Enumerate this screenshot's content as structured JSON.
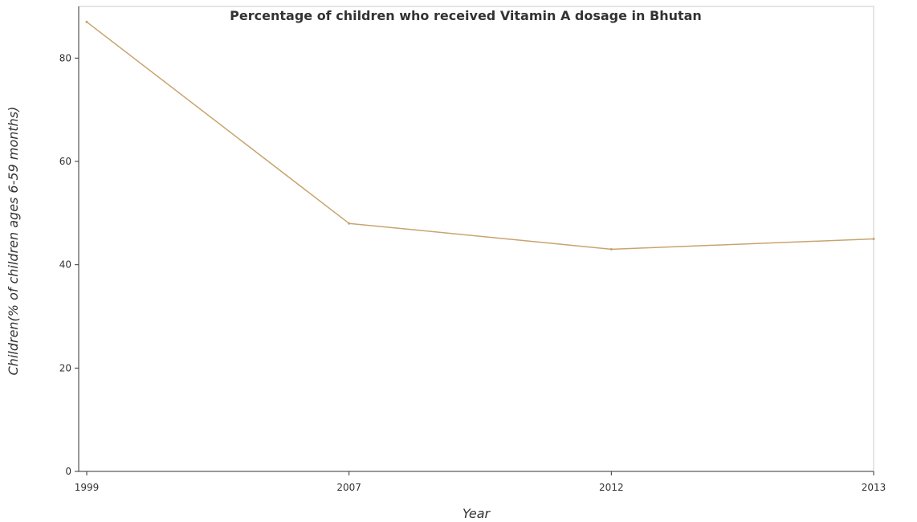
{
  "chart_data": {
    "type": "line",
    "title": "Percentage of children who received Vitamin A dosage in Bhutan",
    "xlabel": "Year",
    "ylabel": "Children(% of children ages 6-59 months)",
    "categories": [
      "1999",
      "2007",
      "2012",
      "2013"
    ],
    "series": [
      {
        "values": [
          87,
          48,
          43,
          45
        ],
        "color": "#c8a46e"
      }
    ],
    "ylim": [
      0,
      90
    ],
    "yticks": [
      "0",
      "20",
      "40",
      "60",
      "80"
    ],
    "grid": false,
    "legend": "none"
  }
}
